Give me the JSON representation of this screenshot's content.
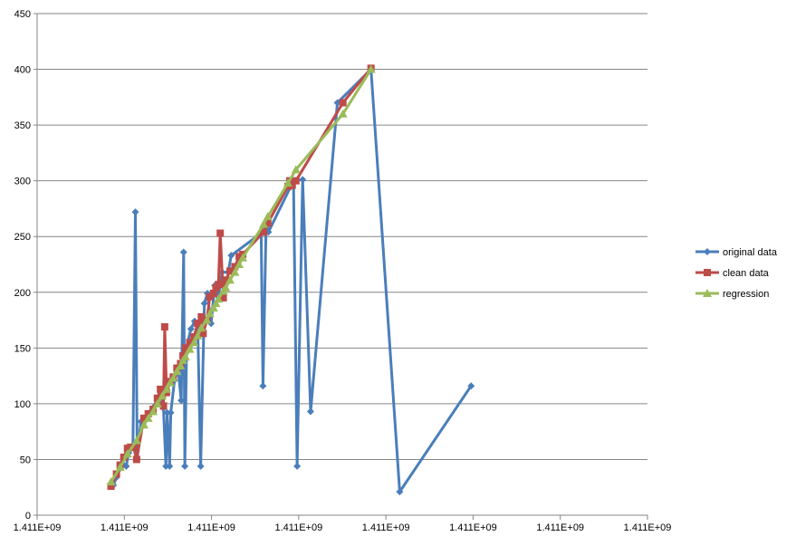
{
  "chart_data": {
    "type": "line",
    "title": "",
    "xlabel": "",
    "ylabel": "",
    "ylim": [
      0,
      450
    ],
    "y_ticks": [
      0,
      50,
      100,
      150,
      200,
      250,
      300,
      350,
      400,
      450
    ],
    "x_tick_labels": [
      "1.411E+09",
      "1.411E+09",
      "1.411E+09",
      "1.411E+09",
      "1.411E+09",
      "1.411E+09",
      "1.411E+09",
      "1.411E+09"
    ],
    "grid": "horizontal",
    "legend_position": "right",
    "x_unit_note": "x values expressed as fraction of axis span (axis labels all read 1.411E+09)",
    "series": [
      {
        "name": "original data",
        "color": "#4A7EBB",
        "marker": "diamond",
        "points": [
          [
            0.125,
            27
          ],
          [
            0.13,
            34
          ],
          [
            0.136,
            42
          ],
          [
            0.14,
            46
          ],
          [
            0.146,
            44
          ],
          [
            0.15,
            56
          ],
          [
            0.154,
            60
          ],
          [
            0.157,
            61
          ],
          [
            0.161,
            272
          ],
          [
            0.164,
            51
          ],
          [
            0.17,
            84
          ],
          [
            0.178,
            87
          ],
          [
            0.185,
            92
          ],
          [
            0.191,
            97
          ],
          [
            0.197,
            104
          ],
          [
            0.202,
            103
          ],
          [
            0.207,
            96
          ],
          [
            0.211,
            44
          ],
          [
            0.213,
            92
          ],
          [
            0.217,
            44
          ],
          [
            0.219,
            92
          ],
          [
            0.225,
            121
          ],
          [
            0.231,
            131
          ],
          [
            0.236,
            103
          ],
          [
            0.24,
            236
          ],
          [
            0.242,
            44
          ],
          [
            0.245,
            151
          ],
          [
            0.252,
            167
          ],
          [
            0.258,
            174
          ],
          [
            0.263,
            172
          ],
          [
            0.268,
            44
          ],
          [
            0.274,
            190
          ],
          [
            0.279,
            199
          ],
          [
            0.285,
            172
          ],
          [
            0.291,
            206
          ],
          [
            0.297,
            196
          ],
          [
            0.303,
            218
          ],
          [
            0.313,
            218
          ],
          [
            0.318,
            233
          ],
          [
            0.367,
            253
          ],
          [
            0.37,
            116
          ],
          [
            0.375,
            258
          ],
          [
            0.379,
            254
          ],
          [
            0.42,
            300
          ],
          [
            0.426,
            44
          ],
          [
            0.435,
            301
          ],
          [
            0.448,
            93
          ],
          [
            0.492,
            370
          ],
          [
            0.547,
            400
          ],
          [
            0.594,
            21
          ],
          [
            0.711,
            116
          ]
        ]
      },
      {
        "name": "clean data",
        "color": "#BE4B48",
        "marker": "square",
        "points": [
          [
            0.121,
            26
          ],
          [
            0.13,
            37
          ],
          [
            0.136,
            45
          ],
          [
            0.142,
            52
          ],
          [
            0.148,
            60
          ],
          [
            0.153,
            61
          ],
          [
            0.158,
            61
          ],
          [
            0.163,
            50
          ],
          [
            0.175,
            87
          ],
          [
            0.182,
            91
          ],
          [
            0.19,
            95
          ],
          [
            0.197,
            105
          ],
          [
            0.202,
            113
          ],
          [
            0.205,
            108
          ],
          [
            0.207,
            98
          ],
          [
            0.209,
            169
          ],
          [
            0.212,
            110
          ],
          [
            0.218,
            120
          ],
          [
            0.223,
            124
          ],
          [
            0.229,
            132
          ],
          [
            0.235,
            136
          ],
          [
            0.239,
            143
          ],
          [
            0.243,
            150
          ],
          [
            0.25,
            155
          ],
          [
            0.257,
            160
          ],
          [
            0.263,
            172
          ],
          [
            0.269,
            178
          ],
          [
            0.272,
            163
          ],
          [
            0.278,
            175
          ],
          [
            0.283,
            196
          ],
          [
            0.289,
            199
          ],
          [
            0.293,
            204
          ],
          [
            0.297,
            207
          ],
          [
            0.3,
            253
          ],
          [
            0.305,
            195
          ],
          [
            0.309,
            211
          ],
          [
            0.316,
            219
          ],
          [
            0.324,
            223
          ],
          [
            0.331,
            232
          ],
          [
            0.337,
            234
          ],
          [
            0.371,
            254
          ],
          [
            0.378,
            262
          ],
          [
            0.411,
            295
          ],
          [
            0.414,
            300
          ],
          [
            0.418,
            296
          ],
          [
            0.424,
            300
          ],
          [
            0.501,
            370
          ],
          [
            0.547,
            401
          ]
        ]
      },
      {
        "name": "regression",
        "color": "#9BBB59",
        "marker": "triangle",
        "points": [
          [
            0.121,
            30
          ],
          [
            0.136,
            43
          ],
          [
            0.148,
            55
          ],
          [
            0.163,
            67
          ],
          [
            0.175,
            81
          ],
          [
            0.182,
            87
          ],
          [
            0.19,
            93
          ],
          [
            0.197,
            100
          ],
          [
            0.205,
            107
          ],
          [
            0.212,
            113
          ],
          [
            0.218,
            119
          ],
          [
            0.223,
            123
          ],
          [
            0.229,
            129
          ],
          [
            0.235,
            134
          ],
          [
            0.239,
            139
          ],
          [
            0.243,
            142
          ],
          [
            0.25,
            149
          ],
          [
            0.257,
            155
          ],
          [
            0.263,
            161
          ],
          [
            0.269,
            168
          ],
          [
            0.278,
            175
          ],
          [
            0.283,
            181
          ],
          [
            0.289,
            186
          ],
          [
            0.293,
            190
          ],
          [
            0.297,
            194
          ],
          [
            0.305,
            201
          ],
          [
            0.309,
            204
          ],
          [
            0.316,
            211
          ],
          [
            0.324,
            218
          ],
          [
            0.331,
            225
          ],
          [
            0.337,
            231
          ],
          [
            0.371,
            261
          ],
          [
            0.378,
            268
          ],
          [
            0.411,
            298
          ],
          [
            0.424,
            310
          ],
          [
            0.501,
            360
          ],
          [
            0.547,
            400
          ]
        ]
      }
    ]
  }
}
